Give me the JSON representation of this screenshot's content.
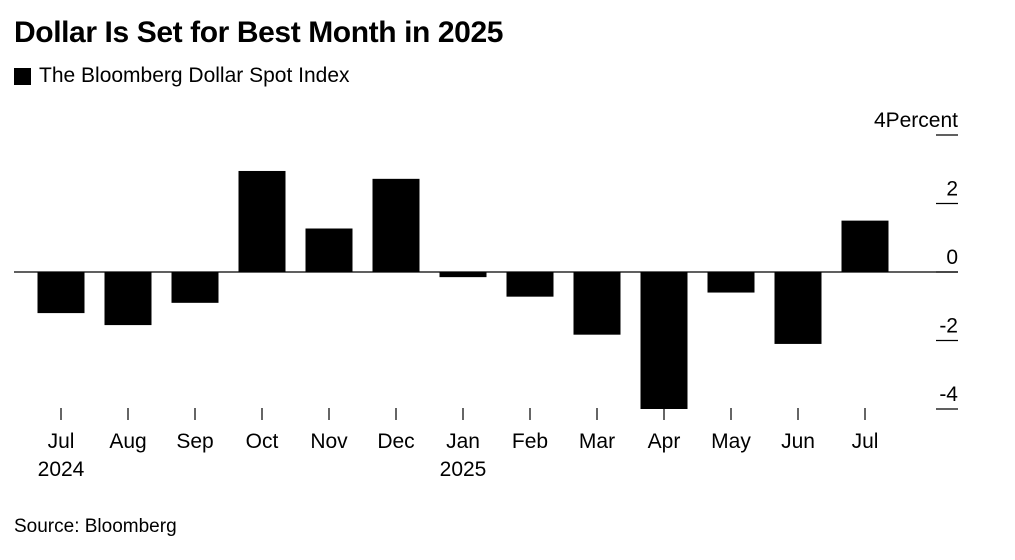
{
  "chart_data": {
    "type": "bar",
    "title": "Dollar Is Set for Best Month in 2025",
    "series": [
      {
        "name": "The Bloomberg Dollar Spot Index",
        "values": [
          -1.2,
          -1.55,
          -0.9,
          2.95,
          1.27,
          2.72,
          -0.15,
          -0.72,
          -1.83,
          -4.0,
          -0.6,
          -2.1,
          1.5
        ]
      }
    ],
    "categories": [
      "Jul",
      "Aug",
      "Sep",
      "Oct",
      "Nov",
      "Dec",
      "Jan",
      "Feb",
      "Mar",
      "Apr",
      "May",
      "Jun",
      "Jul"
    ],
    "year_labels": {
      "0": "2024",
      "6": "2025"
    },
    "y_unit_label": "Percent",
    "y_ticks": [
      4,
      2,
      0,
      -2,
      -4
    ],
    "ylim": [
      -4,
      4
    ],
    "bar_color": "#000000",
    "grid": false,
    "legend_position": "top-left"
  },
  "source": "Source: Bloomberg"
}
